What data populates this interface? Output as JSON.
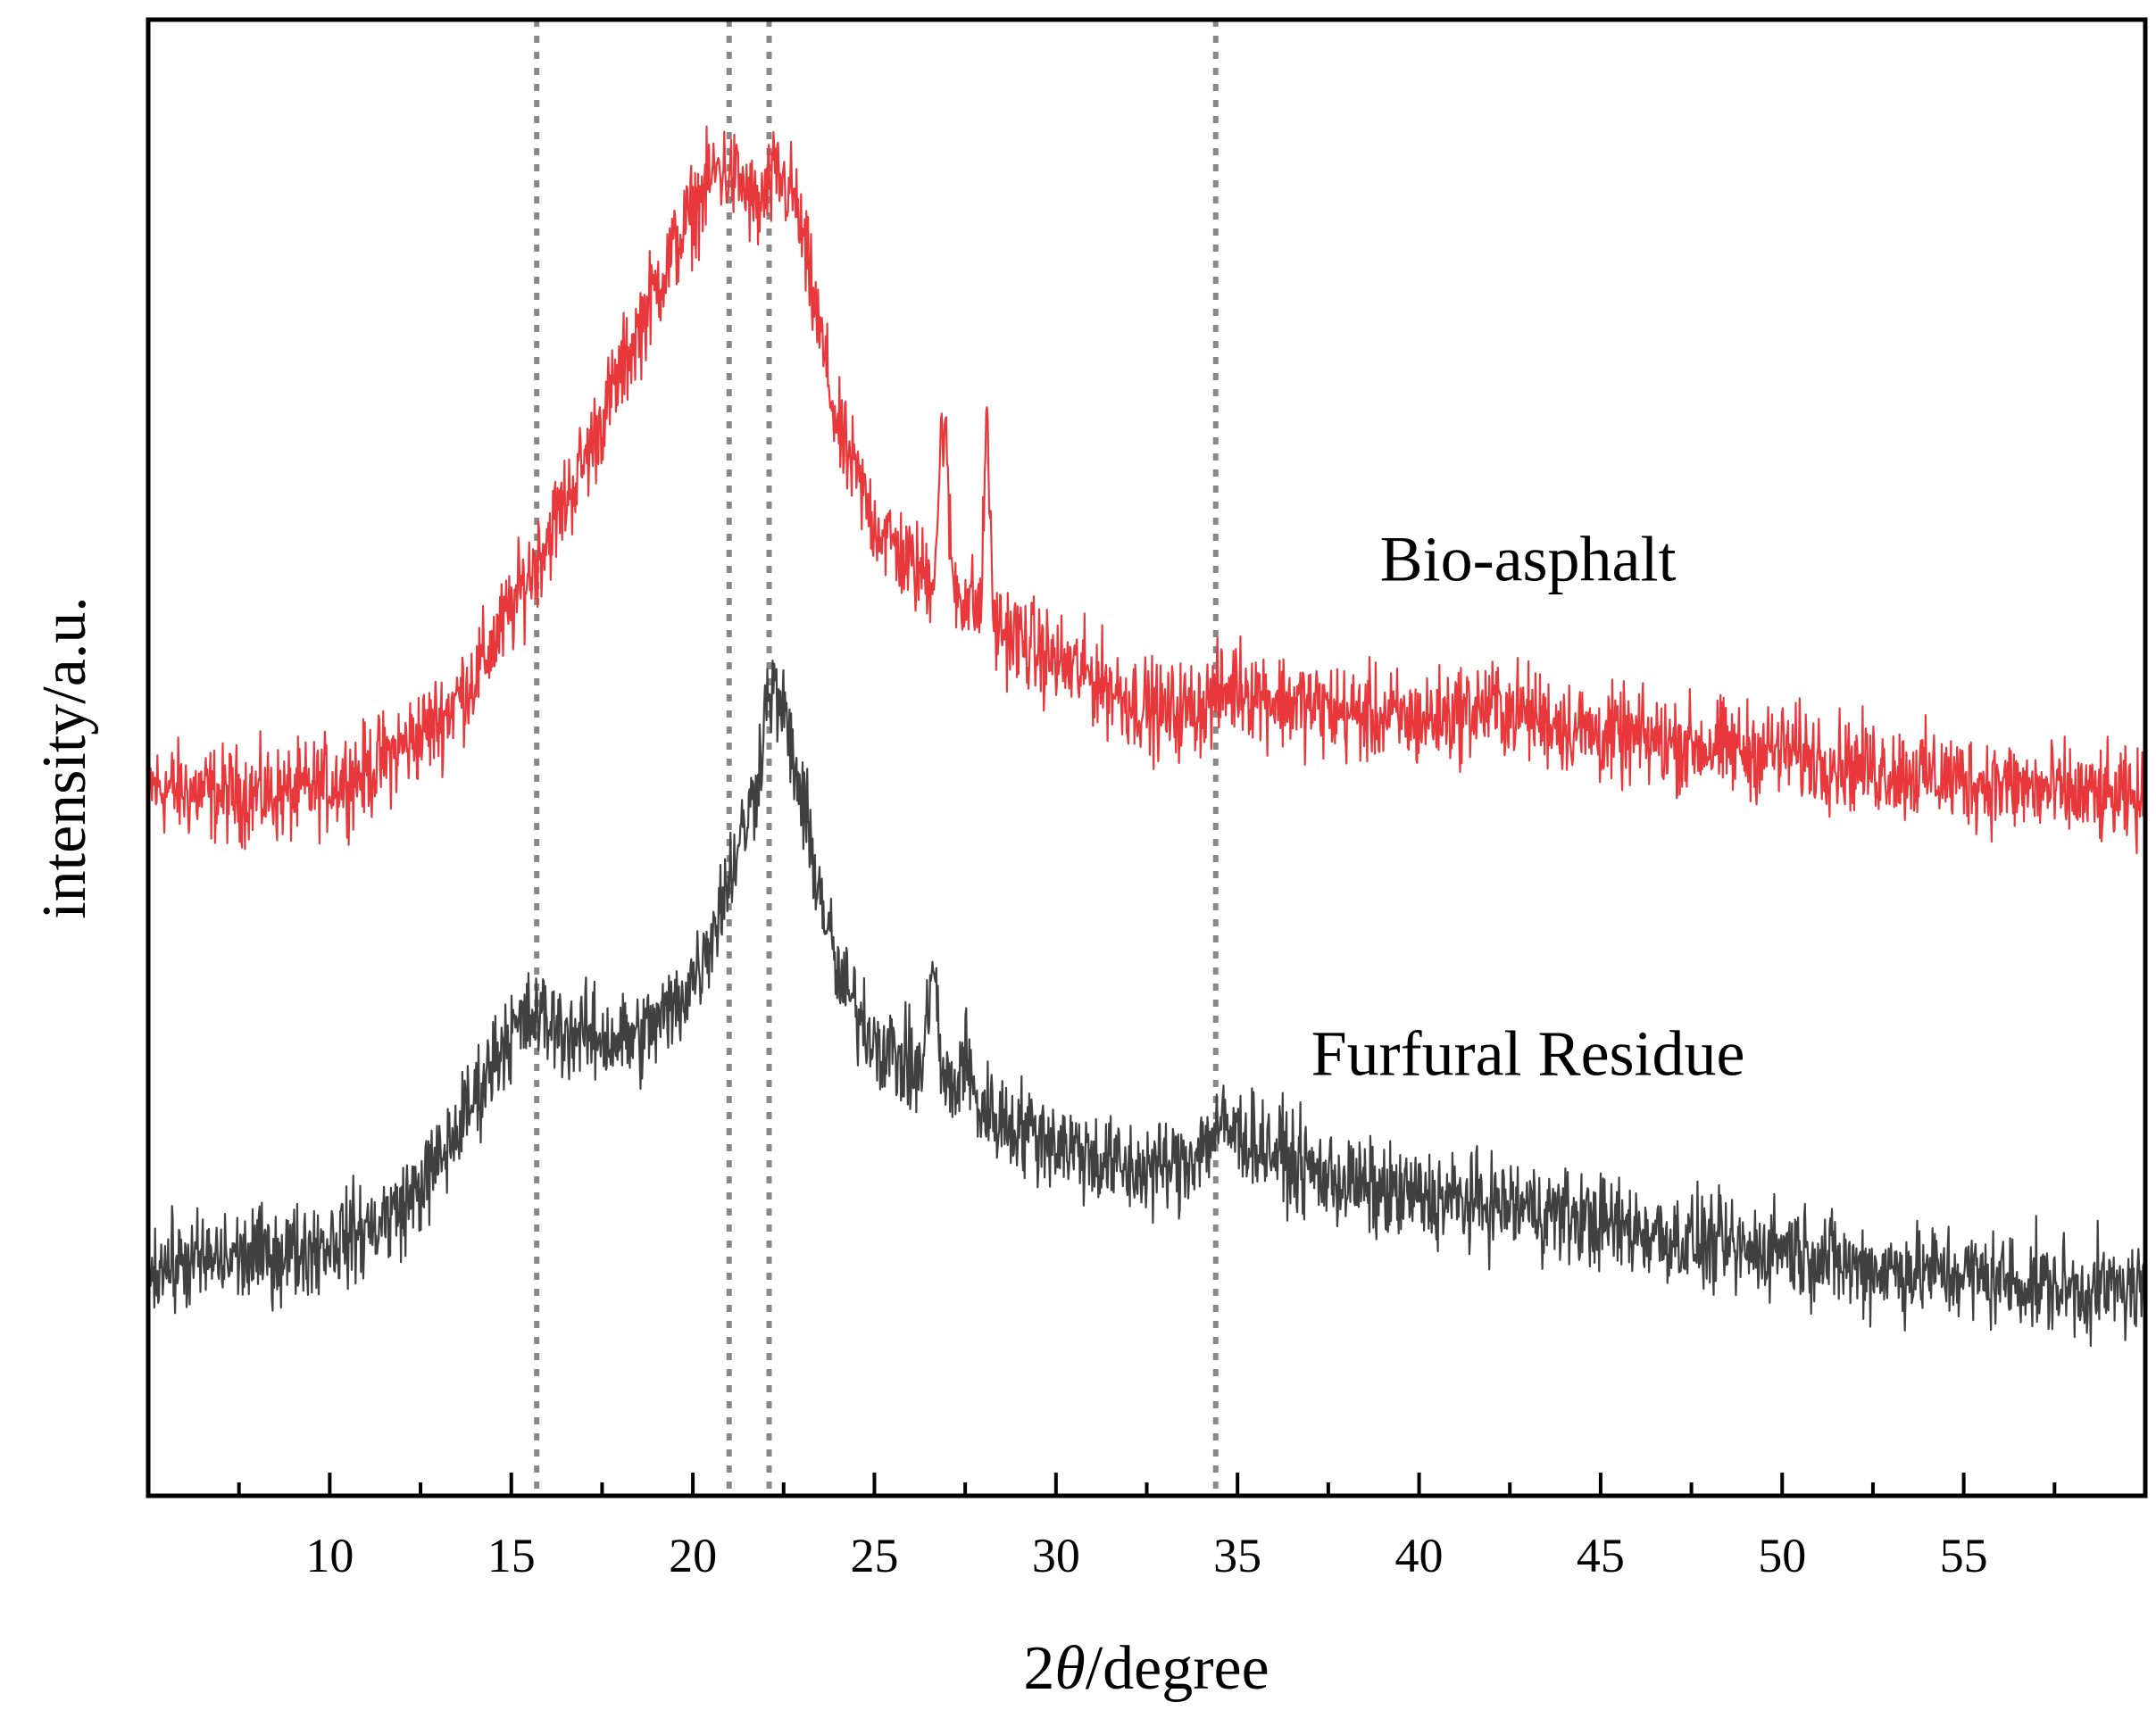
{
  "chart_data": {
    "type": "line",
    "title": "",
    "xlabel_prefix": "2",
    "xlabel_symbol": "θ",
    "xlabel_suffix": "/degree",
    "ylabel": "intensity/a.u.",
    "xlim": [
      5,
      60
    ],
    "ylim": [
      0,
      100
    ],
    "major_ticks": [
      10,
      15,
      20,
      25,
      30,
      35,
      40,
      45,
      50,
      55
    ],
    "tick_labels": [
      "10",
      "15",
      "20",
      "25",
      "30",
      "35",
      "40",
      "45",
      "50",
      "55"
    ],
    "minor_ticks": [
      7.5,
      12.5,
      17.5,
      22.5,
      27.5,
      32.5,
      37.5,
      42.5,
      47.5,
      52.5,
      57.5
    ],
    "reference_lines": [
      15.7,
      21.0,
      22.1,
      34.4
    ],
    "series": [
      {
        "name": "Bio-asphalt",
        "color": "#e8383b",
        "label_at": [
          43,
          62
        ],
        "noise": 1.6,
        "points": [
          [
            5,
            48
          ],
          [
            7,
            47.5
          ],
          [
            9,
            47.5
          ],
          [
            11,
            49
          ],
          [
            13,
            52.5
          ],
          [
            14,
            55.5
          ],
          [
            15,
            60
          ],
          [
            16,
            65
          ],
          [
            17,
            70
          ],
          [
            18,
            76
          ],
          [
            19,
            82
          ],
          [
            20,
            87
          ],
          [
            20.7,
            90
          ],
          [
            21.3,
            89
          ],
          [
            21.8,
            87
          ],
          [
            22.3,
            89.5
          ],
          [
            22.8,
            88
          ],
          [
            23.4,
            80
          ],
          [
            24,
            72
          ],
          [
            25,
            66
          ],
          [
            26,
            63
          ],
          [
            26.7,
            62
          ],
          [
            27.5,
            61
          ],
          [
            28.3,
            59
          ],
          [
            29,
            58
          ],
          [
            30,
            56.5
          ],
          [
            31,
            55.5
          ],
          [
            32,
            54
          ],
          [
            33,
            53
          ],
          [
            34,
            53.5
          ],
          [
            35,
            55
          ],
          [
            36,
            54
          ],
          [
            38,
            53
          ],
          [
            40,
            52.5
          ],
          [
            42,
            53.5
          ],
          [
            43,
            53
          ],
          [
            45,
            51.5
          ],
          [
            47,
            51
          ],
          [
            49,
            50.5
          ],
          [
            50,
            50.5
          ],
          [
            52,
            49.5
          ],
          [
            55,
            48.5
          ],
          [
            58,
            47.5
          ],
          [
            60,
            47
          ]
        ],
        "peaks": [
          [
            26.9,
            11,
            0.12
          ],
          [
            28.1,
            14,
            0.07
          ]
        ]
      },
      {
        "name": "Furfural Residue",
        "color": "#404040",
        "label_at": [
          43,
          28.5
        ],
        "noise": 1.6,
        "points": [
          [
            5,
            15.5
          ],
          [
            7,
            16
          ],
          [
            9,
            16.5
          ],
          [
            11,
            18
          ],
          [
            12,
            19.5
          ],
          [
            13,
            22.5
          ],
          [
            14,
            27
          ],
          [
            14.8,
            31
          ],
          [
            15.7,
            32.5
          ],
          [
            16.5,
            31.5
          ],
          [
            17.5,
            31
          ],
          [
            18.5,
            31
          ],
          [
            19.5,
            33
          ],
          [
            20.3,
            36.5
          ],
          [
            21,
            42
          ],
          [
            21.7,
            47.5
          ],
          [
            22.1,
            55
          ],
          [
            22.5,
            53
          ],
          [
            23,
            47
          ],
          [
            23.5,
            41
          ],
          [
            24,
            35
          ],
          [
            25,
            31
          ],
          [
            26,
            29
          ],
          [
            26.8,
            28
          ],
          [
            27.5,
            27
          ],
          [
            28.5,
            25.5
          ],
          [
            30,
            24
          ],
          [
            32,
            22
          ],
          [
            33.5,
            22.5
          ],
          [
            34.5,
            25
          ],
          [
            35.5,
            24
          ],
          [
            37,
            22
          ],
          [
            39,
            20.5
          ],
          [
            41,
            20
          ],
          [
            43,
            19.5
          ],
          [
            45,
            18.5
          ],
          [
            47,
            17.5
          ],
          [
            49,
            16.5
          ],
          [
            50,
            17
          ],
          [
            52,
            15.5
          ],
          [
            55,
            15
          ],
          [
            58,
            14
          ],
          [
            60,
            14
          ]
        ],
        "peaks": [
          [
            26.6,
            8,
            0.12
          ],
          [
            27.5,
            3,
            0.12
          ]
        ]
      }
    ]
  }
}
